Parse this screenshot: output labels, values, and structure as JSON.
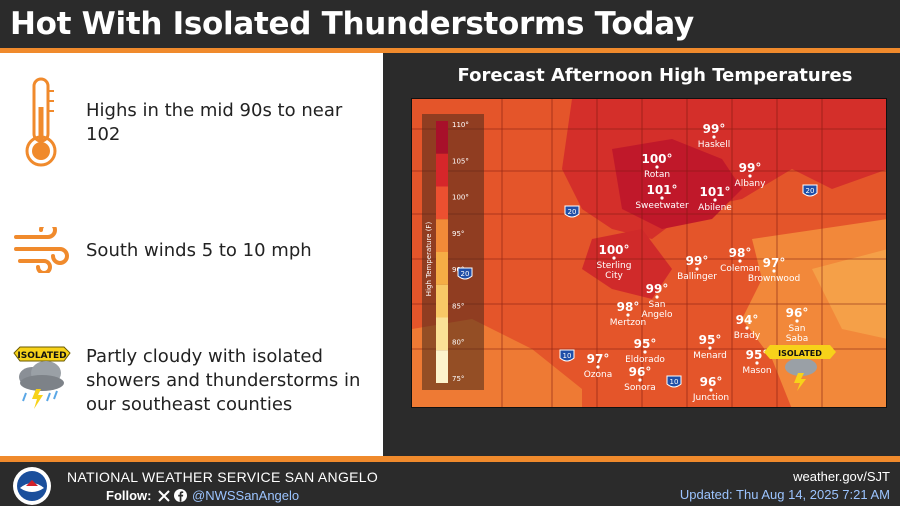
{
  "header": {
    "title": "Hot With Isolated Thunderstorms Today"
  },
  "info": {
    "highs": "Highs in the mid 90s to near 102",
    "winds": "South winds 5 to 10 mph",
    "sky": "Partly cloudy with isolated showers and thunderstorms in our southeast counties",
    "isolated_badge": "ISOLATED"
  },
  "map": {
    "title": "Forecast Afternoon High Temperatures",
    "legend_title": "High Temperature (F)",
    "legend_ticks": [
      "110°",
      "105°",
      "100°",
      "95°",
      "90°",
      "85°",
      "80°",
      "75°"
    ],
    "legend_colors": [
      "#a8102a",
      "#d6262a",
      "#ec5030",
      "#f28a38",
      "#f5ad45",
      "#f8c866",
      "#fae196",
      "#fdf3cc"
    ],
    "isolated_badge": "ISOLATED",
    "highways": [
      "20",
      "20",
      "20",
      "10",
      "10"
    ],
    "cities": [
      {
        "name": "Haskell",
        "temp": "99°"
      },
      {
        "name": "Rotan",
        "temp": "100°"
      },
      {
        "name": "Albany",
        "temp": "99°"
      },
      {
        "name": "Sweetwater",
        "temp": "101°"
      },
      {
        "name": "Abilene",
        "temp": "101°"
      },
      {
        "name": "Sterling City",
        "temp": "100°"
      },
      {
        "name": "Ballinger",
        "temp": "99°"
      },
      {
        "name": "Coleman",
        "temp": "98°"
      },
      {
        "name": "Brownwood",
        "temp": "97°"
      },
      {
        "name": "San Angelo",
        "temp": "99°"
      },
      {
        "name": "Mertzon",
        "temp": "98°"
      },
      {
        "name": "San Saba",
        "temp": "96°"
      },
      {
        "name": "Brady",
        "temp": "94°"
      },
      {
        "name": "Eldorado",
        "temp": "95°"
      },
      {
        "name": "Menard",
        "temp": "95°"
      },
      {
        "name": "Mason",
        "temp": "95°"
      },
      {
        "name": "Ozona",
        "temp": "97°"
      },
      {
        "name": "Sonora",
        "temp": "96°"
      },
      {
        "name": "Junction",
        "temp": "96°"
      }
    ]
  },
  "footer": {
    "org": "NATIONAL WEATHER SERVICE SAN ANGELO",
    "follow": "Follow:",
    "handle": "@NWSSanAngelo",
    "site": "weather.gov/SJT",
    "updated": "Updated: Thu Aug 14, 2025 7:21 AM"
  }
}
